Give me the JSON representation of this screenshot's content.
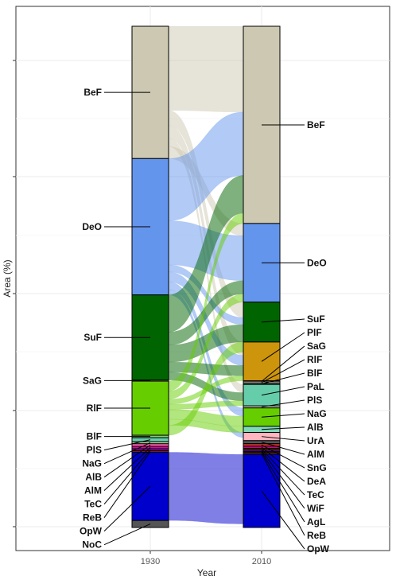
{
  "chart_data": {
    "type": "alluvial",
    "xlabel": "Year",
    "ylabel": "Area (%)",
    "axes": [
      "1930",
      "2010"
    ],
    "strata": {
      "1930": [
        {
          "name": "BeF",
          "value": 26.4,
          "color": "#cdc8b1"
        },
        {
          "name": "DeO",
          "value": 27.2,
          "color": "#6495ed"
        },
        {
          "name": "SuF",
          "value": 17.0,
          "color": "#006400"
        },
        {
          "name": "SaG",
          "value": 0.2,
          "color": "#ffe4e1"
        },
        {
          "name": "RlF",
          "value": 10.8,
          "color": "#66cd00"
        },
        {
          "name": "BlF",
          "value": 0.5,
          "color": "#7ccd7c"
        },
        {
          "name": "PlS",
          "value": 0.8,
          "color": "#66cdaa"
        },
        {
          "name": "NaG",
          "value": 0.4,
          "color": "#c2d8a8"
        },
        {
          "name": "AlB",
          "value": 0.5,
          "color": "#ff69b4"
        },
        {
          "name": "AlM",
          "value": 0.5,
          "color": "#c71585"
        },
        {
          "name": "TeC",
          "value": 0.4,
          "color": "#9400d3"
        },
        {
          "name": "ReB",
          "value": 0.3,
          "color": "#8b2500"
        },
        {
          "name": "OpW",
          "value": 13.6,
          "color": "#0000cd"
        },
        {
          "name": "NoC",
          "value": 1.4,
          "color": "#555555"
        }
      ],
      "2010": [
        {
          "name": "BeF",
          "value": 38.6,
          "color": "#cdc8b1"
        },
        {
          "name": "DeO",
          "value": 15.4,
          "color": "#6495ed"
        },
        {
          "name": "SuF",
          "value": 7.8,
          "color": "#006400"
        },
        {
          "name": "PlF",
          "value": 7.6,
          "color": "#cd950c"
        },
        {
          "name": "SaG",
          "value": 0.2,
          "color": "#ffe4e1"
        },
        {
          "name": "RlF",
          "value": 0.3,
          "color": "#eeeeee"
        },
        {
          "name": "BlF",
          "value": 0.2,
          "color": "#7ccd7c"
        },
        {
          "name": "PaL",
          "value": 4.2,
          "color": "#66cdaa"
        },
        {
          "name": "PlS",
          "value": 0.4,
          "color": "#c2d8a8"
        },
        {
          "name": "NaG",
          "value": 3.6,
          "color": "#66cd00"
        },
        {
          "name": "AlB",
          "value": 1.2,
          "color": "#7fd8b8"
        },
        {
          "name": "UrA",
          "value": 1.6,
          "color": "#ffb6c1"
        },
        {
          "name": "AlM",
          "value": 0.6,
          "color": "#555555"
        },
        {
          "name": "SnG",
          "value": 0.5,
          "color": "#cd3333"
        },
        {
          "name": "DeA",
          "value": 0.4,
          "color": "#c71585"
        },
        {
          "name": "TeC",
          "value": 0.3,
          "color": "#8b2500"
        },
        {
          "name": "WiF",
          "value": 0.3,
          "color": "#9400d3"
        },
        {
          "name": "AgL",
          "value": 0.3,
          "color": "#222222"
        },
        {
          "name": "ReB",
          "value": 0.3,
          "color": "#8b4513"
        },
        {
          "name": "OpW",
          "value": 14.3,
          "color": "#0000cd"
        }
      ]
    },
    "flows": [
      {
        "from": "BeF",
        "to": "BeF",
        "value": 16.8,
        "color": "#cdc8b1"
      },
      {
        "from": "BeF",
        "to": "SuF",
        "value": 3.0,
        "color": "#cdc8b1"
      },
      {
        "from": "BeF",
        "to": "PlF",
        "value": 2.6,
        "color": "#cdc8b1"
      },
      {
        "from": "BeF",
        "to": "PaL",
        "value": 1.6,
        "color": "#cdc8b1"
      },
      {
        "from": "BeF",
        "to": "DeO",
        "value": 2.4,
        "color": "#cdc8b1"
      },
      {
        "from": "DeO",
        "to": "BeF",
        "value": 12.4,
        "color": "#6495ed"
      },
      {
        "from": "DeO",
        "to": "DeO",
        "value": 8.8,
        "color": "#6495ed"
      },
      {
        "from": "DeO",
        "to": "SuF",
        "value": 1.4,
        "color": "#6495ed"
      },
      {
        "from": "DeO",
        "to": "PlF",
        "value": 2.0,
        "color": "#6495ed"
      },
      {
        "from": "DeO",
        "to": "NaG",
        "value": 1.6,
        "color": "#6495ed"
      },
      {
        "from": "DeO",
        "to": "UrA",
        "value": 1.0,
        "color": "#6495ed"
      },
      {
        "from": "SuF",
        "to": "BeF",
        "value": 7.4,
        "color": "#006400"
      },
      {
        "from": "SuF",
        "to": "DeO",
        "value": 2.6,
        "color": "#006400"
      },
      {
        "from": "SuF",
        "to": "SuF",
        "value": 3.4,
        "color": "#006400"
      },
      {
        "from": "SuF",
        "to": "PlF",
        "value": 2.0,
        "color": "#006400"
      },
      {
        "from": "SuF",
        "to": "PaL",
        "value": 1.6,
        "color": "#006400"
      },
      {
        "from": "RlF",
        "to": "BeF",
        "value": 2.0,
        "color": "#66cd00"
      },
      {
        "from": "RlF",
        "to": "DeO",
        "value": 1.6,
        "color": "#66cd00"
      },
      {
        "from": "RlF",
        "to": "PlF",
        "value": 1.0,
        "color": "#66cd00"
      },
      {
        "from": "RlF",
        "to": "PaL",
        "value": 1.0,
        "color": "#66cd00"
      },
      {
        "from": "RlF",
        "to": "NaG",
        "value": 2.0,
        "color": "#66cd00"
      },
      {
        "from": "RlF",
        "to": "AlB",
        "value": 1.2,
        "color": "#66cd00"
      },
      {
        "from": "RlF",
        "to": "SuF",
        "value": 2.0,
        "color": "#66cd00"
      },
      {
        "from": "OpW",
        "to": "OpW",
        "value": 13.6,
        "color": "#0000cd"
      }
    ]
  }
}
